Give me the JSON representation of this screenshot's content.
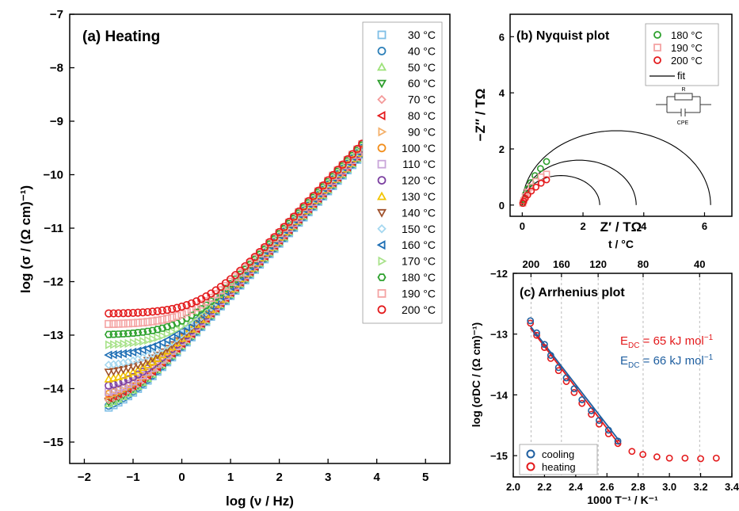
{
  "chart_data": [
    {
      "type": "scatter",
      "panel": "a",
      "title": "(a) Heating",
      "xlabel": "log (ν / Hz)",
      "ylabel": "log (σ / (Ω cm)⁻¹)",
      "xlim": [
        -2.3,
        5.5
      ],
      "ylim": [
        -15.4,
        -7.0
      ],
      "x_ticks": [
        "−2",
        "−1",
        "0",
        "1",
        "2",
        "3",
        "4",
        "5"
      ],
      "x_tick_values": [
        -2,
        -1,
        0,
        1,
        2,
        3,
        4,
        5
      ],
      "y_ticks": [
        "−7",
        "−8",
        "−9",
        "−10",
        "−11",
        "−12",
        "−13",
        "−14",
        "−15"
      ],
      "y_tick_values": [
        -7,
        -8,
        -9,
        -10,
        -11,
        -12,
        -13,
        -14,
        -15
      ],
      "legend_position": "top-right",
      "x_range_data": [
        -1.5,
        3.8
      ],
      "series": [
        {
          "name": "30 °C",
          "color": "#7fbfe6",
          "marker": "square",
          "plateau": -14.6
        },
        {
          "name": "40 °C",
          "color": "#2c7fb8",
          "marker": "circle",
          "plateau": -14.55
        },
        {
          "name": "50 °C",
          "color": "#9ee27a",
          "marker": "triangle-up",
          "plateau": -14.5
        },
        {
          "name": "60 °C",
          "color": "#2e9e2e",
          "marker": "triangle-down",
          "plateau": -14.45
        },
        {
          "name": "70 °C",
          "color": "#f49a9a",
          "marker": "diamond",
          "plateau": -14.4
        },
        {
          "name": "80 °C",
          "color": "#e41a1c",
          "marker": "triangle-left",
          "plateau": -14.35
        },
        {
          "name": "90 °C",
          "color": "#f4b06a",
          "marker": "triangle-right",
          "plateau": -14.3
        },
        {
          "name": "100 °C",
          "color": "#f28e1c",
          "marker": "circle",
          "plateau": -14.25
        },
        {
          "name": "110 °C",
          "color": "#c9a5d9",
          "marker": "square",
          "plateau": -14.2
        },
        {
          "name": "120 °C",
          "color": "#7b3fa0",
          "marker": "circle",
          "plateau": -14.05
        },
        {
          "name": "130 °C",
          "color": "#f2c500",
          "marker": "triangle-up",
          "plateau": -13.9
        },
        {
          "name": "140 °C",
          "color": "#a0522d",
          "marker": "triangle-down",
          "plateau": -13.75
        },
        {
          "name": "150 °C",
          "color": "#a6d8f0",
          "marker": "diamond",
          "plateau": -13.6
        },
        {
          "name": "160 °C",
          "color": "#1f6fb5",
          "marker": "triangle-left",
          "plateau": -13.4
        },
        {
          "name": "170 °C",
          "color": "#a8e28a",
          "marker": "triangle-right",
          "plateau": -13.2
        },
        {
          "name": "180 °C",
          "color": "#2ca02c",
          "marker": "hexagon",
          "plateau": -13.0
        },
        {
          "name": "190 °C",
          "color": "#f4a3a3",
          "marker": "square",
          "plateau": -12.8
        },
        {
          "name": "200 °C",
          "color": "#e31a1c",
          "marker": "circle",
          "plateau": -12.6
        }
      ]
    },
    {
      "type": "scatter",
      "panel": "b",
      "title": "(b) Nyquist plot",
      "xlabel": "Z′ / TΩ",
      "ylabel": "−Z″ / TΩ",
      "xlim": [
        -0.4,
        6.9
      ],
      "ylim": [
        -0.4,
        6.8
      ],
      "x_ticks": [
        "0",
        "2",
        "4",
        "6"
      ],
      "x_tick_values": [
        0,
        2,
        4,
        6
      ],
      "y_ticks": [
        "0",
        "2",
        "4",
        "6"
      ],
      "y_tick_values": [
        0,
        2,
        4,
        6
      ],
      "legend_position": "top-right",
      "circuit_labels": {
        "r": "R",
        "cpe": "CPE"
      },
      "series": [
        {
          "name": "180 °C",
          "color": "#2ca02c",
          "marker": "circle",
          "x": [
            0.02,
            0.05,
            0.1,
            0.18,
            0.28,
            0.42,
            0.6,
            0.8
          ],
          "y": [
            0.08,
            0.2,
            0.38,
            0.58,
            0.8,
            1.05,
            1.3,
            1.55
          ]
        },
        {
          "name": "190 °C",
          "color": "#f4a3a3",
          "marker": "square",
          "x": [
            0.02,
            0.05,
            0.1,
            0.18,
            0.3,
            0.45,
            0.62,
            0.8
          ],
          "y": [
            0.07,
            0.16,
            0.3,
            0.46,
            0.64,
            0.84,
            1.0,
            1.1
          ]
        },
        {
          "name": "200 °C",
          "color": "#e31a1c",
          "marker": "circle",
          "x": [
            0.02,
            0.05,
            0.1,
            0.18,
            0.3,
            0.45,
            0.62,
            0.8
          ],
          "y": [
            0.06,
            0.14,
            0.24,
            0.36,
            0.5,
            0.64,
            0.78,
            0.9
          ]
        }
      ],
      "fits": [
        {
          "name": "fit",
          "R": 6.2,
          "peak": 2.65
        },
        {
          "name": "fit",
          "R": 3.75,
          "peak": 1.6
        },
        {
          "name": "fit",
          "R": 2.55,
          "peak": 1.05
        }
      ]
    },
    {
      "type": "scatter",
      "panel": "c",
      "title": "(c) Arrhenius plot",
      "xlabel": "1000 T⁻¹ / K⁻¹",
      "x2label": "t / °C",
      "ylabel": "log (σDC / (Ω cm)⁻¹)",
      "xlim": [
        2.0,
        3.4
      ],
      "ylim": [
        -15.35,
        -12.0
      ],
      "x_ticks": [
        "2.0",
        "2.2",
        "2.4",
        "2.6",
        "2.8",
        "3.0",
        "3.2",
        "3.4"
      ],
      "x_tick_values": [
        2.0,
        2.2,
        2.4,
        2.6,
        2.8,
        3.0,
        3.2,
        3.4
      ],
      "top_ticks": [
        "200",
        "160",
        "120",
        "80",
        "40"
      ],
      "top_tick_values": [
        200,
        160,
        120,
        80,
        40
      ],
      "y_ticks": [
        "−12",
        "−13",
        "−14",
        "−15"
      ],
      "y_tick_values": [
        -12,
        -13,
        -14,
        -15
      ],
      "legend_position": "bottom-left",
      "series": [
        {
          "name": "cooling",
          "color": "#1f5fa0",
          "marker": "circle",
          "x": [
            2.11,
            2.15,
            2.2,
            2.24,
            2.29,
            2.34,
            2.39,
            2.44,
            2.5,
            2.55,
            2.61,
            2.67
          ],
          "y": [
            -12.78,
            -12.98,
            -13.17,
            -13.35,
            -13.55,
            -13.72,
            -13.9,
            -14.08,
            -14.26,
            -14.42,
            -14.58,
            -14.76
          ]
        },
        {
          "name": "heating",
          "color": "#e31a1c",
          "marker": "circle",
          "x": [
            2.11,
            2.15,
            2.2,
            2.24,
            2.29,
            2.34,
            2.39,
            2.44,
            2.5,
            2.55,
            2.61,
            2.67,
            2.76,
            2.83,
            2.92,
            3.0,
            3.1,
            3.2,
            3.3
          ],
          "y": [
            -12.82,
            -13.02,
            -13.22,
            -13.4,
            -13.6,
            -13.78,
            -13.96,
            -14.14,
            -14.32,
            -14.48,
            -14.64,
            -14.8,
            -14.93,
            -14.98,
            -15.02,
            -15.04,
            -15.04,
            -15.05,
            -15.04
          ]
        }
      ],
      "fits": [
        {
          "color": "#e31a1c",
          "x": [
            2.11,
            2.68
          ],
          "y": [
            -12.9,
            -14.82
          ]
        },
        {
          "color": "#1f5fa0",
          "x": [
            2.11,
            2.68
          ],
          "y": [
            -12.87,
            -14.76
          ]
        }
      ],
      "annotations": [
        {
          "label": "E",
          "sub": "DC",
          "rest": " = 65 kJ mol",
          "sup": "−1",
          "color": "#e31a1c"
        },
        {
          "label": "E",
          "sub": "DC",
          "rest": " = 66 kJ mol",
          "sup": "−1",
          "color": "#1f5fa0"
        }
      ]
    }
  ]
}
